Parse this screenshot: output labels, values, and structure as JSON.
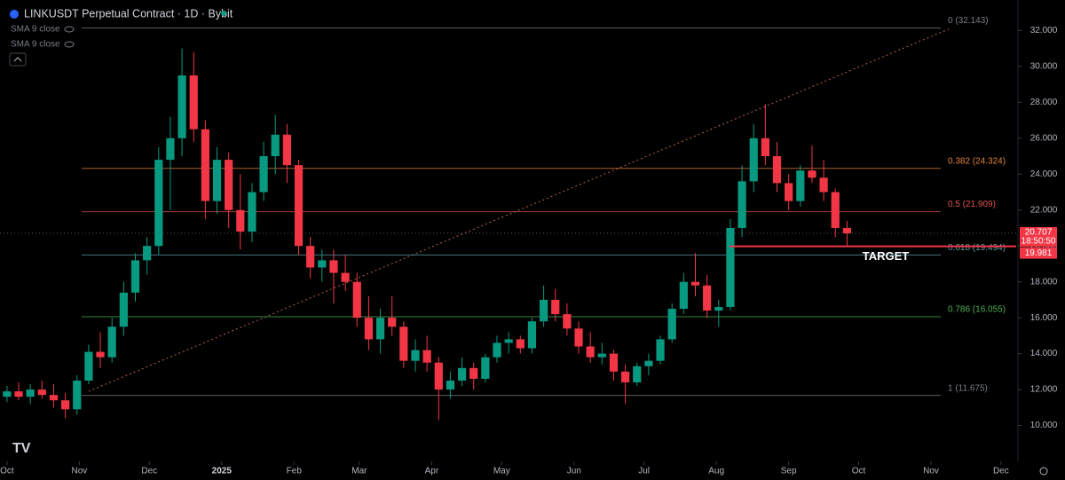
{
  "chart_data": {
    "type": "candlestick",
    "title": "LINKUSDT Perpetual Contract · 1D · Bybit",
    "indicators": [
      "SMA 9 close",
      "SMA 9 close"
    ],
    "up_color": "#089981",
    "down_color": "#f23645",
    "x": [
      0,
      5,
      10,
      15,
      20,
      25,
      30,
      35,
      40,
      45,
      50,
      55,
      60,
      65,
      70,
      75,
      80,
      85,
      90,
      95,
      100,
      105,
      110,
      115,
      120,
      125,
      130,
      135,
      140,
      145,
      150,
      155,
      160,
      165,
      170,
      175,
      180,
      185,
      190,
      195,
      200,
      205,
      210,
      215,
      220,
      225,
      230,
      235,
      240,
      245,
      250,
      255,
      260,
      265,
      270,
      275,
      280,
      285,
      290,
      295,
      300,
      305,
      310,
      315,
      320,
      325,
      330,
      335,
      340,
      345,
      350,
      355,
      360
    ],
    "open": [
      11.6,
      11.9,
      11.6,
      12.0,
      11.7,
      11.4,
      10.9,
      12.5,
      14.1,
      13.8,
      15.5,
      17.4,
      19.2,
      20.0,
      24.8,
      26.0,
      29.5,
      26.5,
      22.5,
      24.8,
      22.0,
      20.8,
      23.0,
      25.0,
      26.2,
      24.5,
      20.0,
      18.8,
      19.2,
      18.5,
      18.0,
      16.0,
      14.8,
      16.0,
      15.5,
      13.6,
      14.2,
      13.5,
      12.0,
      12.5,
      13.2,
      12.6,
      13.8,
      14.6,
      14.8,
      14.3,
      15.8,
      17.0,
      16.2,
      15.4,
      14.4,
      13.8,
      14.0,
      13.0,
      12.4,
      13.3,
      13.6,
      14.8,
      16.5,
      18.0,
      17.8,
      16.4,
      16.6,
      21.0,
      23.6,
      26.0,
      25.0,
      23.5,
      22.5,
      24.2,
      23.8,
      23.0,
      21.0
    ],
    "high": [
      12.2,
      12.4,
      12.3,
      12.5,
      12.3,
      11.8,
      12.8,
      14.5,
      15.2,
      16.0,
      18.0,
      19.6,
      20.5,
      25.5,
      27.2,
      31.0,
      30.8,
      27.0,
      25.5,
      25.2,
      24.0,
      23.5,
      25.8,
      27.3,
      26.8,
      24.8,
      20.5,
      19.8,
      19.8,
      19.5,
      18.5,
      17.2,
      16.5,
      17.2,
      15.8,
      14.8,
      15.0,
      13.8,
      13.0,
      13.8,
      13.5,
      14.0,
      15.0,
      15.2,
      15.0,
      16.0,
      17.8,
      17.6,
      16.8,
      15.8,
      15.2,
      14.6,
      14.2,
      13.4,
      13.5,
      14.0,
      15.0,
      16.8,
      18.5,
      19.6,
      18.4,
      17.0,
      21.5,
      24.5,
      26.8,
      27.9,
      25.8,
      24.0,
      24.5,
      25.6,
      24.8,
      23.2,
      21.4
    ],
    "low": [
      11.3,
      11.4,
      11.2,
      11.5,
      11.0,
      10.4,
      10.6,
      12.3,
      13.2,
      13.5,
      15.0,
      16.9,
      18.4,
      19.5,
      22.0,
      25.0,
      25.8,
      21.5,
      21.8,
      21.0,
      19.8,
      20.2,
      22.5,
      24.0,
      23.5,
      19.5,
      18.2,
      18.0,
      16.8,
      17.5,
      15.5,
      14.2,
      14.0,
      15.0,
      13.2,
      13.0,
      13.0,
      10.3,
      11.5,
      12.2,
      12.0,
      12.4,
      13.5,
      14.0,
      14.0,
      14.0,
      15.5,
      15.8,
      15.0,
      14.0,
      13.5,
      13.4,
      12.5,
      11.2,
      12.2,
      12.8,
      13.4,
      14.6,
      16.2,
      17.2,
      16.0,
      15.5,
      16.4,
      20.5,
      23.0,
      24.5,
      23.0,
      22.0,
      22.2,
      23.5,
      22.5,
      20.5,
      19.98
    ],
    "close": [
      11.9,
      11.6,
      12.0,
      11.7,
      11.4,
      10.9,
      12.5,
      14.1,
      13.8,
      15.5,
      17.4,
      19.2,
      20.0,
      24.8,
      26.0,
      29.5,
      26.5,
      22.5,
      24.8,
      22.0,
      20.8,
      23.0,
      25.0,
      26.2,
      24.5,
      20.0,
      18.8,
      19.2,
      18.5,
      18.0,
      16.0,
      14.8,
      16.0,
      15.5,
      13.6,
      14.2,
      13.5,
      12.0,
      12.5,
      13.2,
      12.6,
      13.8,
      14.6,
      14.8,
      14.3,
      15.8,
      17.0,
      16.2,
      15.4,
      14.4,
      13.8,
      14.0,
      13.0,
      12.4,
      13.3,
      13.6,
      14.8,
      16.5,
      18.0,
      17.8,
      16.4,
      16.6,
      21.0,
      23.6,
      26.0,
      25.0,
      23.5,
      22.5,
      24.2,
      23.8,
      23.0,
      21.0,
      20.7
    ],
    "xlim": [
      -3,
      432.5
    ],
    "xticks": [
      {
        "value": 0,
        "label": "Oct"
      },
      {
        "value": 31,
        "label": "Nov"
      },
      {
        "value": 61,
        "label": "Dec"
      },
      {
        "value": 92,
        "label": "2025"
      },
      {
        "value": 123,
        "label": "Feb"
      },
      {
        "value": 151,
        "label": "Mar"
      },
      {
        "value": 182,
        "label": "Apr"
      },
      {
        "value": 212,
        "label": "May"
      },
      {
        "value": 243,
        "label": "Jun"
      },
      {
        "value": 273,
        "label": "Jul"
      },
      {
        "value": 304,
        "label": "Aug"
      },
      {
        "value": 335,
        "label": "Sep"
      },
      {
        "value": 365,
        "label": "Oct"
      },
      {
        "value": 396,
        "label": "Nov"
      },
      {
        "value": 426,
        "label": "Dec"
      }
    ],
    "ylim": [
      8,
      33.7
    ],
    "yticks": [
      {
        "value": 10,
        "label": "10.000"
      },
      {
        "value": 12,
        "label": "12.000"
      },
      {
        "value": 14,
        "label": "14.000"
      },
      {
        "value": 16,
        "label": "16.000"
      },
      {
        "value": 18,
        "label": "18.000"
      },
      {
        "value": 20,
        "label": "20.000"
      },
      {
        "value": 22,
        "label": "22.000"
      },
      {
        "value": 24,
        "label": "24.000"
      },
      {
        "value": 26,
        "label": "26.000"
      },
      {
        "value": 28,
        "label": "28.000"
      },
      {
        "value": 30,
        "label": "30.000"
      },
      {
        "value": 32,
        "label": "32.000"
      }
    ],
    "fib_levels": [
      {
        "label": "0 (32.143)",
        "value": 32.143,
        "color": "#787b86"
      },
      {
        "label": "0.382 (24.324)",
        "value": 24.324,
        "color": "#e0823d"
      },
      {
        "label": "0.5 (21.909)",
        "value": 21.909,
        "color": "#e0504f"
      },
      {
        "label": "0.618 (19.494)",
        "value": 19.494,
        "color": "#5b9ca8"
      },
      {
        "label": "0.786 (16.055)",
        "value": 16.055,
        "color": "#4caf50"
      },
      {
        "label": "1 (11.675)",
        "value": 11.675,
        "color": "#787b86"
      }
    ],
    "trend_line": {
      "x": [
        35,
        404
      ],
      "y": [
        11.9,
        32.1
      ]
    },
    "last_price": 20.707,
    "countdown": "18:50:50",
    "target": {
      "value": 19.981,
      "label": "TARGET"
    }
  }
}
